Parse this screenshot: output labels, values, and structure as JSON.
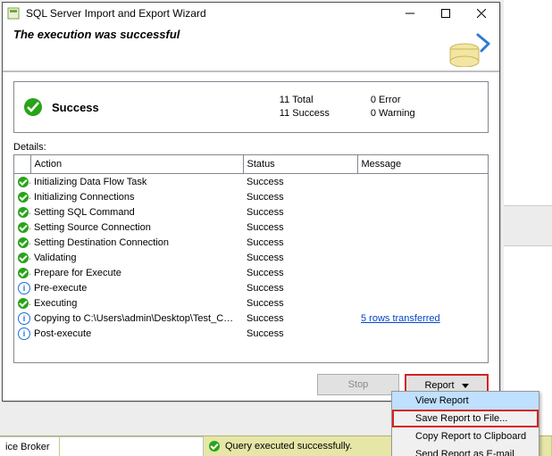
{
  "window": {
    "title": "SQL Server Import and Export Wizard",
    "headline": "The execution was successful"
  },
  "summary": {
    "status_label": "Success",
    "counts": {
      "total_n": "11",
      "total_l": "Total",
      "success_n": "11",
      "success_l": "Success",
      "error_n": "0",
      "error_l": "Error",
      "warning_n": "0",
      "warning_l": "Warning"
    }
  },
  "details_label": "Details:",
  "columns": {
    "action": "Action",
    "status": "Status",
    "message": "Message"
  },
  "rows": [
    {
      "icon": "ok",
      "action": "Initializing Data Flow Task",
      "status": "Success",
      "message": ""
    },
    {
      "icon": "ok",
      "action": "Initializing Connections",
      "status": "Success",
      "message": ""
    },
    {
      "icon": "ok",
      "action": "Setting SQL Command",
      "status": "Success",
      "message": ""
    },
    {
      "icon": "ok",
      "action": "Setting Source Connection",
      "status": "Success",
      "message": ""
    },
    {
      "icon": "ok",
      "action": "Setting Destination Connection",
      "status": "Success",
      "message": ""
    },
    {
      "icon": "ok",
      "action": "Validating",
      "status": "Success",
      "message": ""
    },
    {
      "icon": "ok",
      "action": "Prepare for Execute",
      "status": "Success",
      "message": ""
    },
    {
      "icon": "info",
      "action": "Pre-execute",
      "status": "Success",
      "message": ""
    },
    {
      "icon": "ok",
      "action": "Executing",
      "status": "Success",
      "message": ""
    },
    {
      "icon": "info",
      "action": "Copying to C:\\Users\\admin\\Desktop\\Test_CSV_DB.c...",
      "status": "Success",
      "message": "5 rows transferred",
      "link": true
    },
    {
      "icon": "info",
      "action": "Post-execute",
      "status": "Success",
      "message": ""
    }
  ],
  "buttons": {
    "stop": "Stop",
    "report": "Report"
  },
  "menu": {
    "items": [
      {
        "label": "View Report",
        "selected": true
      },
      {
        "label": "Save Report to File...",
        "highlight": true
      },
      {
        "label": "Copy Report to Clipboard"
      },
      {
        "label": "Send Report as E-mail"
      }
    ]
  },
  "statusbar": {
    "left_fragment": "ice Broker",
    "main": "Query executed successfully."
  },
  "colors": {
    "highlight_red": "#d62222",
    "menu_sel": "#bfe0ff",
    "link": "#0645cc",
    "ok_green": "#27a418",
    "info_blue": "#1a6fd6",
    "statusbar_bg": "#e6e6a8"
  }
}
